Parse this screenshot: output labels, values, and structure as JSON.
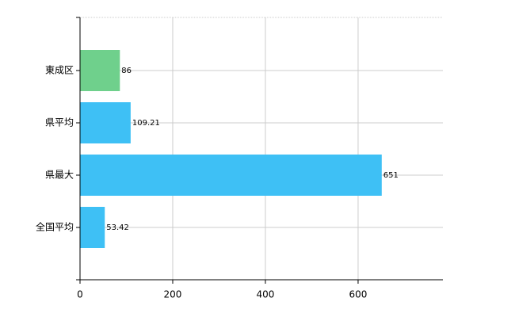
{
  "chart_data": {
    "type": "hbar",
    "categories": [
      "東成区",
      "県平均",
      "県最大",
      "全国平均"
    ],
    "values": [
      86,
      109.21,
      651,
      53.42
    ],
    "colors": [
      "#6fd08c",
      "#3ec0f5",
      "#3ec0f5",
      "#3ec0f5"
    ],
    "xlim": [
      0,
      783
    ],
    "xticks": [
      0,
      200,
      400,
      600
    ],
    "grid": true
  }
}
